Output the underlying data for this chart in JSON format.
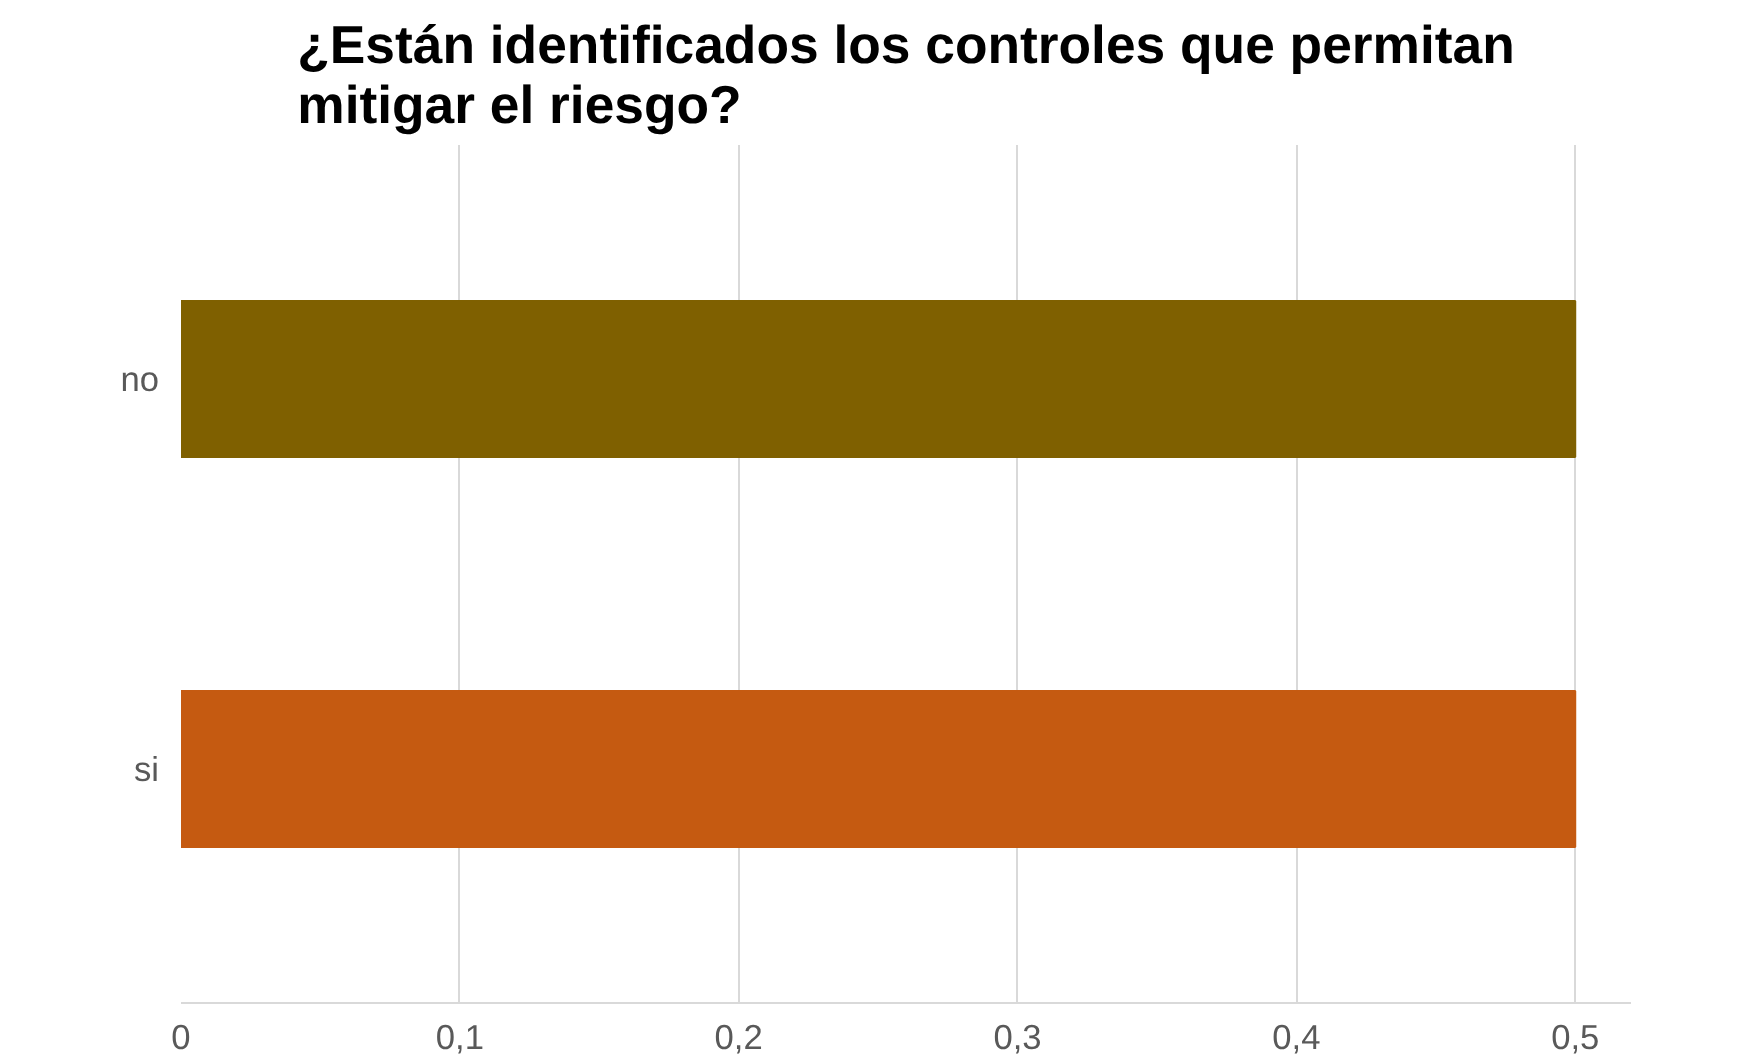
{
  "chart_data": {
    "type": "bar",
    "orientation": "horizontal",
    "title": "¿Están identificados los controles que permitan mitigar el riesgo?",
    "categories": [
      "no",
      "si"
    ],
    "values": [
      0.5,
      0.5
    ],
    "colors": [
      "#7f6000",
      "#c55a11"
    ],
    "xlim": [
      0,
      0.52
    ],
    "xticks": [
      0,
      {
        "value": 0.1,
        "label": "0,1"
      },
      {
        "value": 0.2,
        "label": "0,2"
      },
      {
        "value": 0.3,
        "label": "0,3"
      },
      {
        "value": 0.4,
        "label": "0,4"
      },
      {
        "value": 0.5,
        "label": "0,5"
      }
    ],
    "grid": "x"
  }
}
